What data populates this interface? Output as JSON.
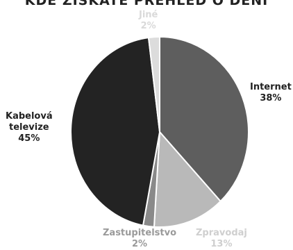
{
  "chart_data": {
    "type": "pie",
    "title": "KDE ZÍSKÁTE PŘEHLED O DĚNÍ",
    "categories": [
      "Internet",
      "Zpravodaj",
      "Zastupitelstvo",
      "Kabelová televize",
      "Jiné"
    ],
    "values": [
      38,
      13,
      2,
      45,
      2
    ],
    "value_labels": [
      "38%",
      "13%",
      "2%",
      "45%",
      "2%"
    ],
    "label_lines": [
      [
        "Internet",
        "38%"
      ],
      [
        "Zpravodaj",
        "13%"
      ],
      [
        "Zastupitelstvo",
        "2%"
      ],
      [
        "Kabelová",
        "televize",
        "45%"
      ],
      [
        "Jiné",
        "2%"
      ]
    ],
    "colors": [
      "#5e5e5e",
      "#b9b9b9",
      "#8a8a8a",
      "#232323",
      "#dcdcdc"
    ],
    "label_colors": [
      "#222222",
      "#cfcfcf",
      "#9a9a9a",
      "#222222",
      "#d9d9d9"
    ],
    "start_angle_deg": 0,
    "direction": "clockwise",
    "legend": "none"
  }
}
